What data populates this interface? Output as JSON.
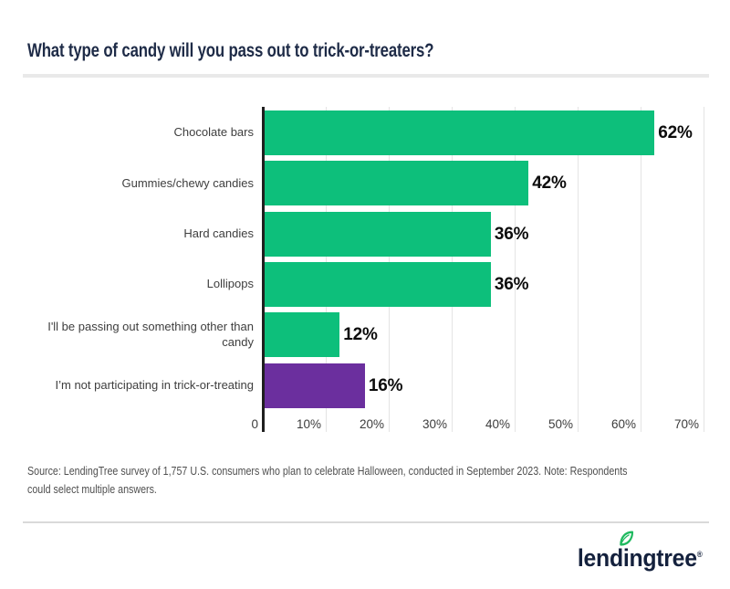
{
  "page": {
    "title": "What type of candy will you pass out to trick-or-treaters?",
    "source_note": {
      "full": "Source: LendingTree survey of 1,757 U.S. consumers who plan to celebrate Halloween, conducted in September 2023. Note: Respondents could select multiple answers.",
      "line1": "Source: LendingTree survey of 1,757 U.S. consumers who plan to celebrate Halloween, conducted in September 2023. Note: Respondents",
      "line2": "could select multiple answers."
    },
    "logo": {
      "full_text": "lendingtree",
      "before_i": "lend",
      "i": "i",
      "after_i": "ngtree",
      "reg_mark": "®",
      "leaf_icon": "leaf-icon",
      "navy": "#14213d",
      "leaf_green": "#1fb95f"
    },
    "colors": {
      "bar_green": "#0dbf7b",
      "bar_purple": "#6b2f9e",
      "title_navy": "#1e2b47",
      "axis_black": "#1f1f1f",
      "gridline_gray": "#e4e4e4",
      "label_gray": "#3e3e3e",
      "source_gray": "#4f4f4f",
      "divider_gray": "#e9e9e9"
    }
  },
  "chart_data": {
    "type": "bar",
    "orientation": "horizontal",
    "title": "What type of candy will you pass out to trick-or-treaters?",
    "categories": [
      "Chocolate bars",
      "Gummies/chewy candies",
      "Hard candies",
      "Lollipops",
      "I'll be passing out something other than candy",
      "I’m not participating in trick-or-treating"
    ],
    "values": [
      62,
      42,
      36,
      36,
      12,
      16
    ],
    "value_labels": [
      "62%",
      "42%",
      "36%",
      "36%",
      "12%",
      "16%"
    ],
    "bar_colors": [
      "#0dbf7b",
      "#0dbf7b",
      "#0dbf7b",
      "#0dbf7b",
      "#0dbf7b",
      "#6b2f9e"
    ],
    "xlim": [
      0,
      70
    ],
    "x_tick_values": [
      0,
      10,
      20,
      30,
      40,
      50,
      60,
      70
    ],
    "x_tick_labels": [
      "0",
      "10%",
      "20%",
      "30%",
      "40%",
      "50%",
      "60%",
      "70%"
    ],
    "xlabel": "",
    "ylabel": "",
    "grid": "vertical gridlines every 10%",
    "legend": "none",
    "value_label_position": "outside-end"
  }
}
